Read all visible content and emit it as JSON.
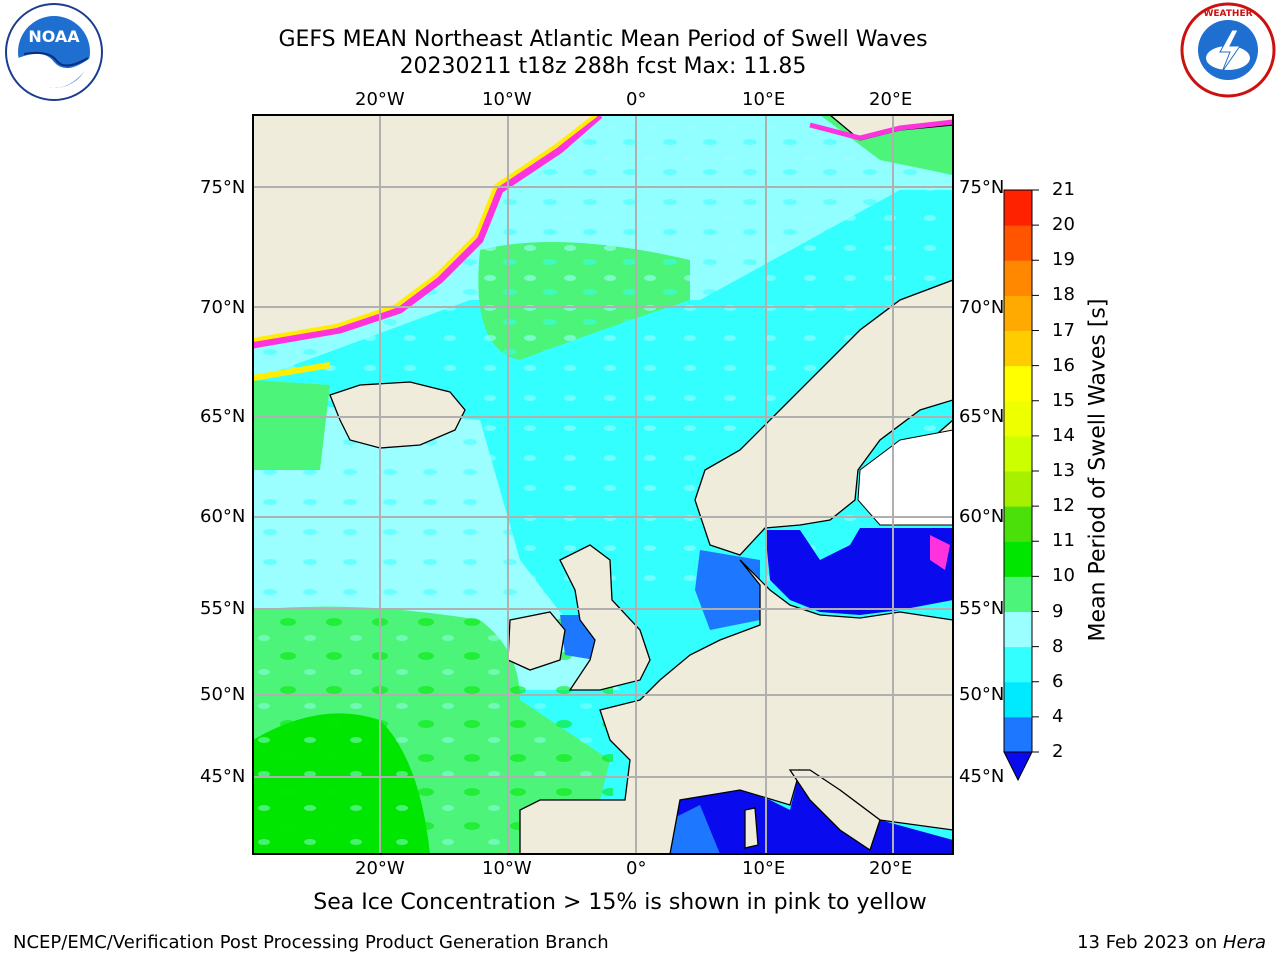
{
  "header": {
    "title_line1": "GEFS MEAN Northeast Atlantic Mean Period of Swell Waves",
    "title_line2": "20230211 t18z 288h fcst   Max: 11.85"
  },
  "logos": {
    "left": "noaa-logo",
    "right": "national-weather-service-logo"
  },
  "map": {
    "lon_labels": [
      "20°W",
      "10°W",
      "0°",
      "10°E",
      "20°E"
    ],
    "lat_labels_left": [
      "75°N",
      "70°N",
      "65°N",
      "60°N",
      "55°N",
      "50°N",
      "45°N"
    ],
    "lat_labels_right": [
      "75°N",
      "70°N",
      "65°N",
      "60°N",
      "55°N",
      "50°N",
      "45°N"
    ],
    "colors": {
      "land": "#efecdc",
      "grid": "#b0b0b0",
      "ice_pink": "#ff33dd",
      "ice_yellow": "#ffee00"
    }
  },
  "colorbar": {
    "title": "Mean Period of Swell Waves [s]",
    "ticks": [
      "2",
      "4",
      "6",
      "8",
      "9",
      "10",
      "11",
      "12",
      "13",
      "14",
      "15",
      "16",
      "17",
      "18",
      "19",
      "20",
      "21"
    ],
    "colors": [
      "#0a0aee",
      "#1e78ff",
      "#00eaff",
      "#34ffff",
      "#9bffff",
      "#4cf57a",
      "#00e600",
      "#4ce00a",
      "#a6f000",
      "#ccff00",
      "#eeff00",
      "#ffff00",
      "#ffcc00",
      "#ffaa00",
      "#ff8800",
      "#ff5500",
      "#ff2200",
      "#ff0000"
    ]
  },
  "caption": "Sea Ice Concentration > 15% is shown in pink to yellow",
  "footer": {
    "left": "NCEP/EMC/Verification Post Processing Product Generation Branch",
    "right_date": "13 Feb 2023 on ",
    "right_host": "Hera"
  }
}
